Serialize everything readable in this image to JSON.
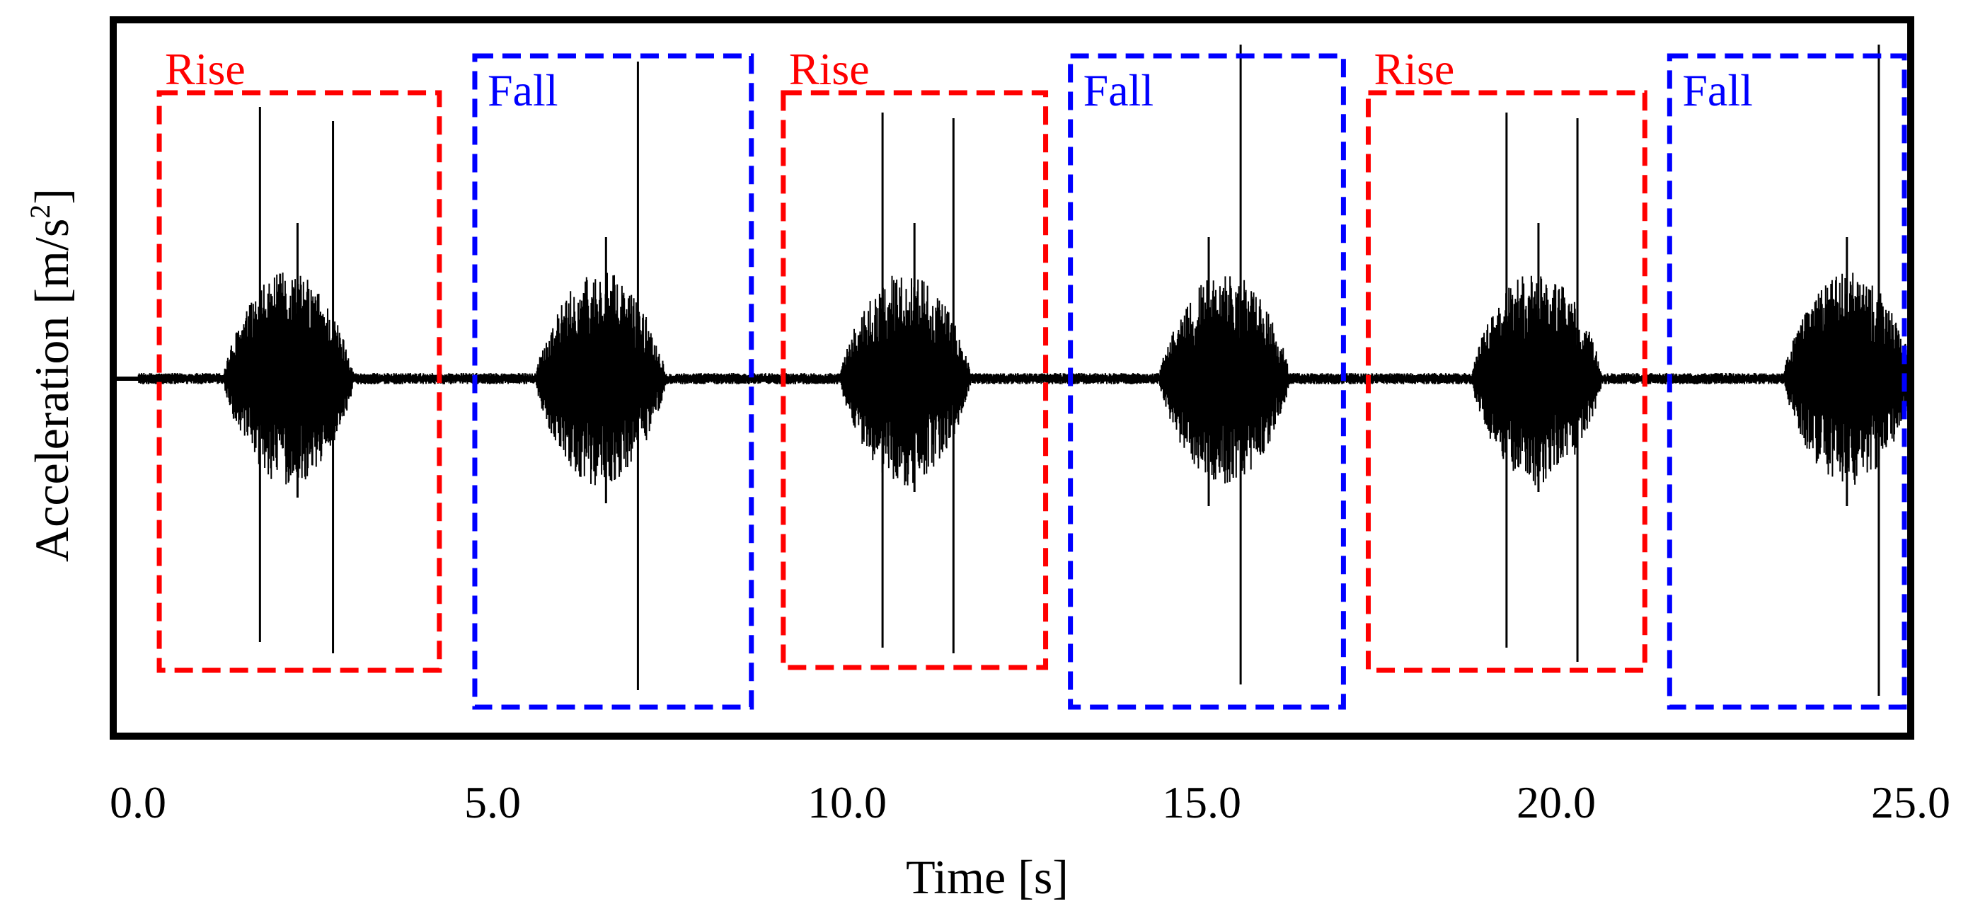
{
  "chart_data": {
    "type": "line",
    "title": "",
    "xlabel": "Time [s]",
    "ylabel_main": "Acceleration  [m/s",
    "ylabel_sup": "2",
    "ylabel_close": "]",
    "xlim": [
      0,
      25
    ],
    "ylim": [
      -1,
      1
    ],
    "x_ticks": [
      {
        "value": 0,
        "label": "0.0"
      },
      {
        "value": 5,
        "label": "5.0"
      },
      {
        "value": 10,
        "label": "10.0"
      },
      {
        "value": 15,
        "label": "15.0"
      },
      {
        "value": 20,
        "label": "20.0"
      },
      {
        "value": 25,
        "label": "25.0"
      }
    ],
    "y_ticks_shown": false,
    "grid": false,
    "series": [
      {
        "name": "acceleration",
        "color": "#000000",
        "baseline_noise": 0.02,
        "bursts": [
          {
            "start": 1.2,
            "end": 3.05,
            "amp": 0.38,
            "spikes": [
              {
                "t": 1.72,
                "up": 0.96,
                "down": -0.93
              },
              {
                "t": 2.75,
                "up": 0.91,
                "down": -0.97
              },
              {
                "t": 2.25,
                "up": 0.55,
                "down": -0.42
              }
            ]
          },
          {
            "start": 5.6,
            "end": 7.45,
            "amp": 0.38,
            "spikes": [
              {
                "t": 7.05,
                "up": 1.12,
                "down": -1.1
              },
              {
                "t": 6.6,
                "up": 0.5,
                "down": -0.44
              }
            ]
          },
          {
            "start": 9.9,
            "end": 11.75,
            "amp": 0.38,
            "spikes": [
              {
                "t": 10.5,
                "up": 0.94,
                "down": -0.95
              },
              {
                "t": 11.5,
                "up": 0.92,
                "down": -0.97
              },
              {
                "t": 10.95,
                "up": 0.55,
                "down": -0.4
              }
            ]
          },
          {
            "start": 14.4,
            "end": 16.25,
            "amp": 0.38,
            "spikes": [
              {
                "t": 15.55,
                "up": 1.18,
                "down": -1.08
              },
              {
                "t": 15.1,
                "up": 0.5,
                "down": -0.45
              }
            ]
          },
          {
            "start": 18.8,
            "end": 20.65,
            "amp": 0.38,
            "spikes": [
              {
                "t": 19.3,
                "up": 0.94,
                "down": -0.95
              },
              {
                "t": 20.3,
                "up": 0.92,
                "down": -1.0
              },
              {
                "t": 19.75,
                "up": 0.55,
                "down": -0.4
              }
            ]
          },
          {
            "start": 23.2,
            "end": 25.05,
            "amp": 0.38,
            "spikes": [
              {
                "t": 24.55,
                "up": 1.18,
                "down": -1.12
              },
              {
                "t": 24.1,
                "up": 0.5,
                "down": -0.45
              }
            ]
          }
        ]
      }
    ],
    "regions": [
      {
        "label": "Rise",
        "color": "#ff0000",
        "x_start": 0.3,
        "x_end": 4.25,
        "y_top": 1.01,
        "y_bottom": -1.03
      },
      {
        "label": "Fall",
        "color": "#0000ff",
        "x_start": 4.75,
        "x_end": 8.65,
        "y_top": 1.14,
        "y_bottom": -1.16
      },
      {
        "label": "Rise",
        "color": "#ff0000",
        "x_start": 9.1,
        "x_end": 12.8,
        "y_top": 1.01,
        "y_bottom": -1.02
      },
      {
        "label": "Fall",
        "color": "#0000ff",
        "x_start": 13.15,
        "x_end": 17.0,
        "y_top": 1.14,
        "y_bottom": -1.16
      },
      {
        "label": "Rise",
        "color": "#ff0000",
        "x_start": 17.35,
        "x_end": 21.25,
        "y_top": 1.01,
        "y_bottom": -1.03
      },
      {
        "label": "Fall",
        "color": "#0000ff",
        "x_start": 21.6,
        "x_end": 25.75,
        "y_top": 1.14,
        "y_bottom": -1.16
      }
    ]
  }
}
